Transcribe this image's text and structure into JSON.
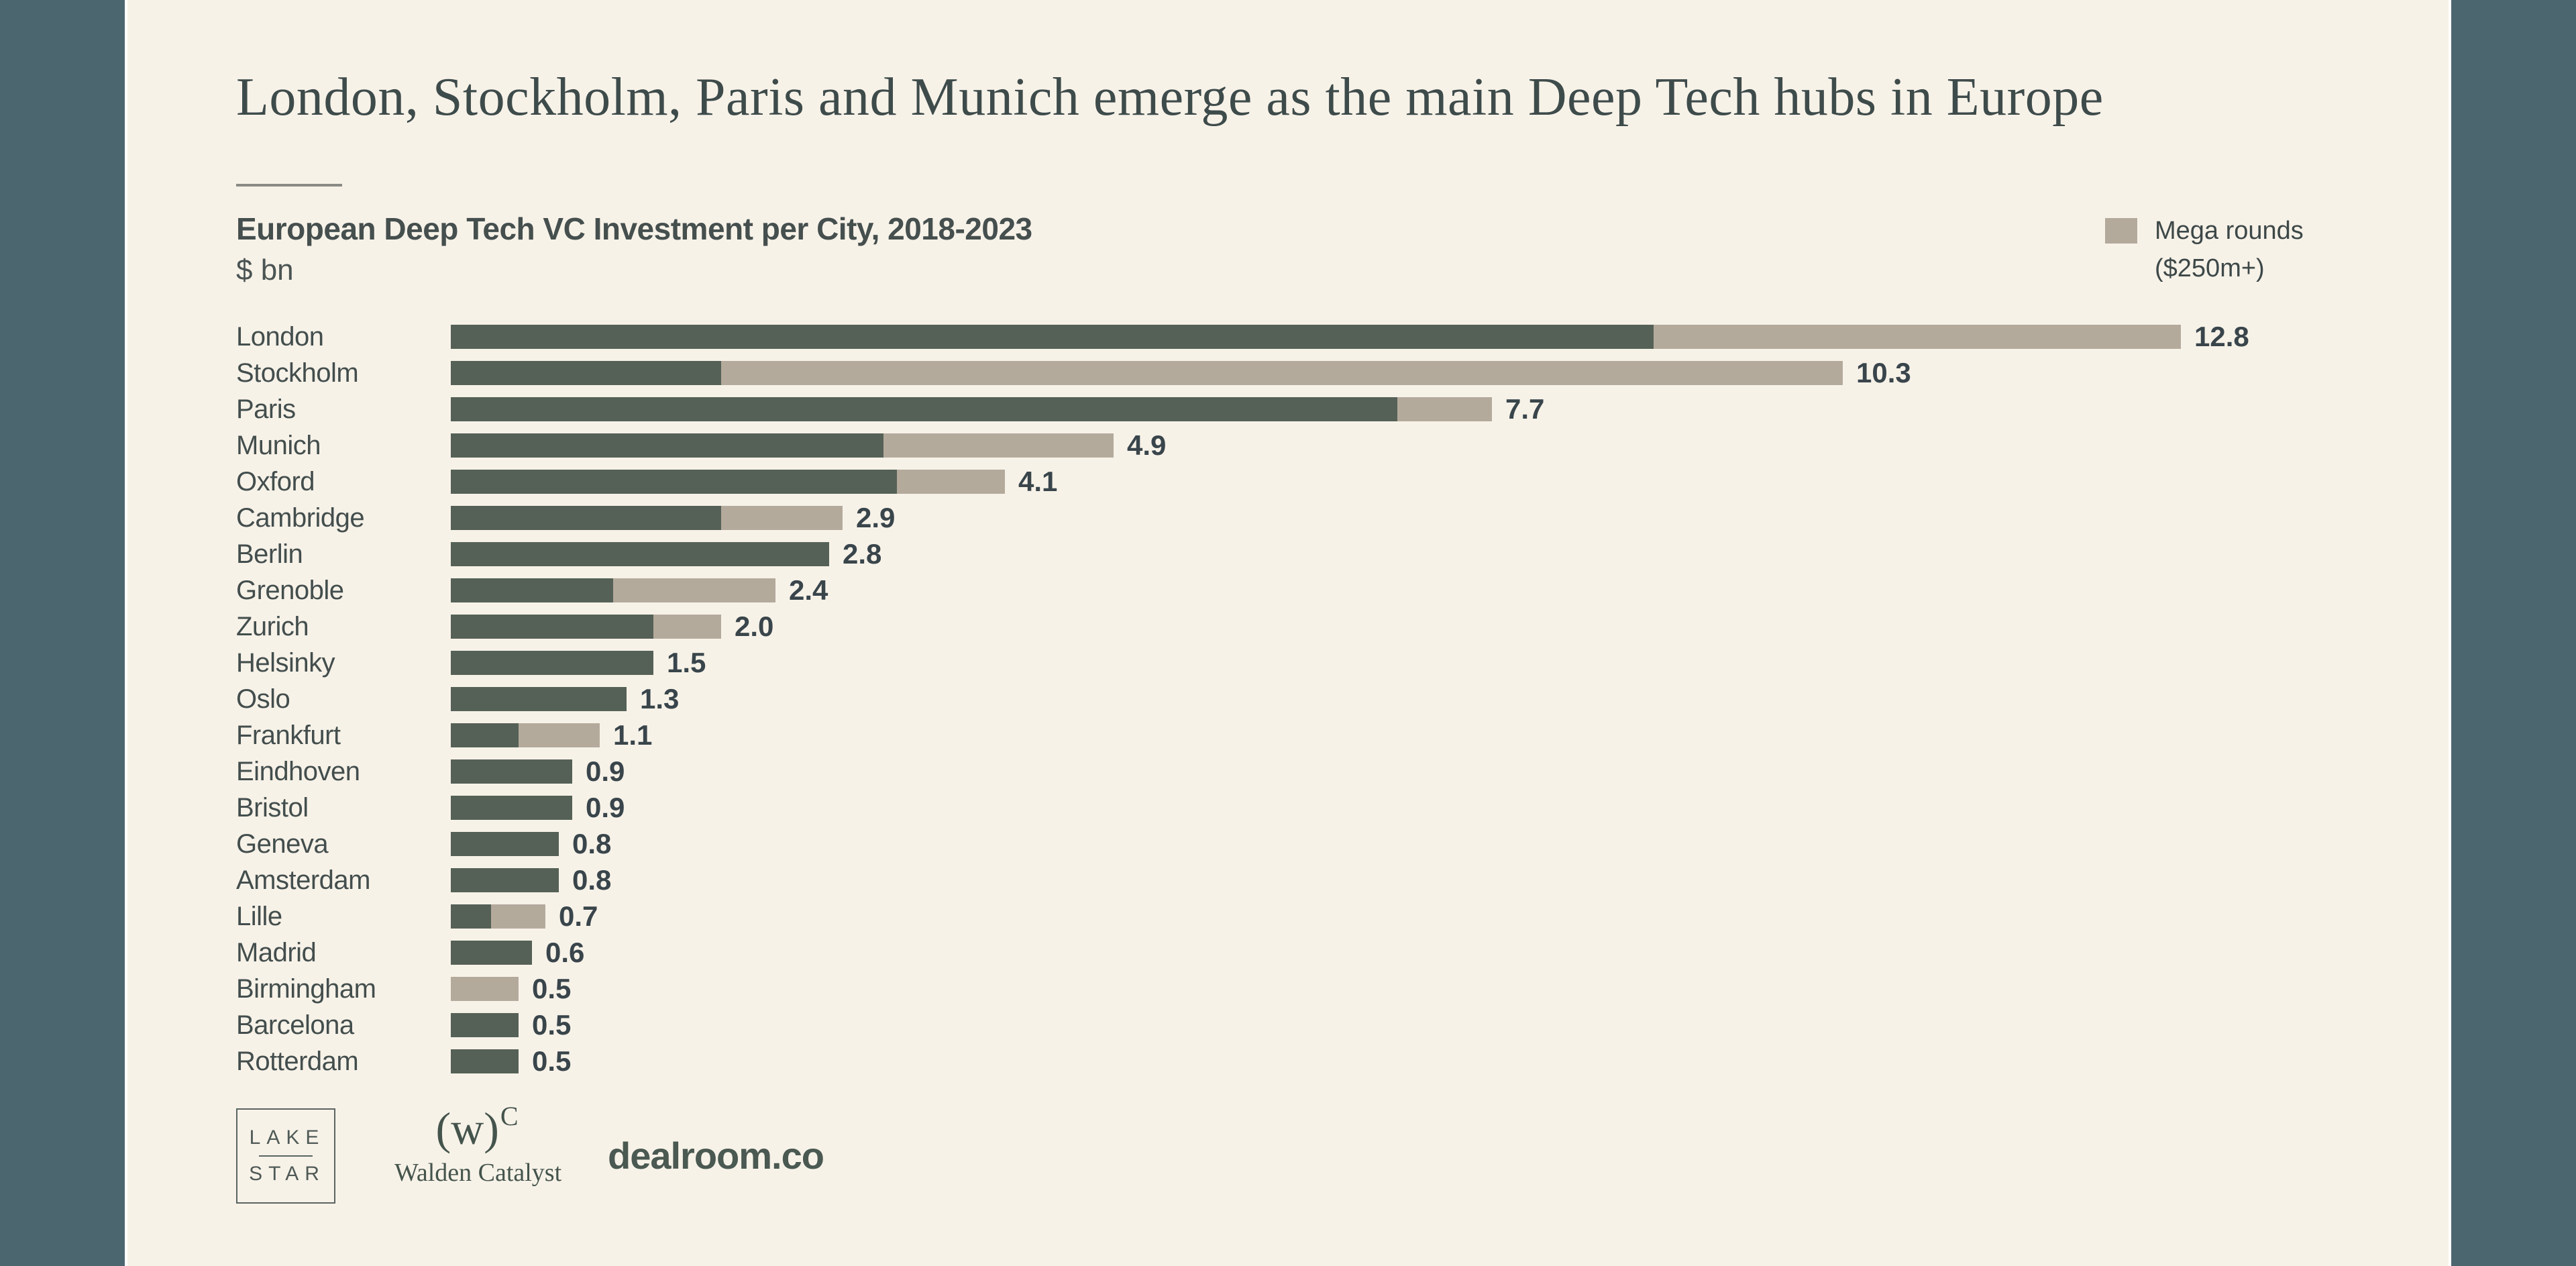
{
  "page": {
    "headline": "London, Stockholm, Paris and Munich emerge as the main Deep Tech hubs in Europe"
  },
  "chart_data": {
    "type": "bar",
    "orientation": "horizontal",
    "title": "European Deep Tech VC Investment per City, 2018-2023",
    "unit_label": "$ bn",
    "categories": [
      "London",
      "Stockholm",
      "Paris",
      "Munich",
      "Oxford",
      "Cambridge",
      "Berlin",
      "Grenoble",
      "Zurich",
      "Helsinky",
      "Oslo",
      "Frankfurt",
      "Eindhoven",
      "Bristol",
      "Geneva",
      "Amsterdam",
      "Lille",
      "Madrid",
      "Birmingham",
      "Barcelona",
      "Rotterdam"
    ],
    "series": [
      {
        "name": "",
        "color": "#556156",
        "values": [
          8.9,
          2.0,
          7.0,
          3.2,
          3.3,
          2.0,
          2.8,
          1.2,
          1.5,
          1.5,
          1.3,
          0.5,
          0.9,
          0.9,
          0.8,
          0.8,
          0.3,
          0.6,
          0.0,
          0.5,
          0.5
        ]
      },
      {
        "name": "Mega rounds ($250m+)",
        "color": "#b4aa9c",
        "values": [
          3.9,
          8.3,
          0.7,
          1.7,
          0.8,
          0.9,
          0.0,
          1.2,
          0.5,
          0.0,
          0.0,
          0.6,
          0.0,
          0.0,
          0.0,
          0.0,
          0.4,
          0.0,
          0.5,
          0.0,
          0.0
        ]
      }
    ],
    "totals": [
      "12.8",
      "10.3",
      "7.7",
      "4.9",
      "4.1",
      "2.9",
      "2.8",
      "2.4",
      "2.0",
      "1.5",
      "1.3",
      "1.1",
      "0.9",
      "0.9",
      "0.8",
      "0.8",
      "0.7",
      "0.6",
      "0.5",
      "0.5",
      "0.5"
    ],
    "xlim": [
      0,
      12.8
    ],
    "grid": "off",
    "legend_position": "top-right",
    "value_labels": "end-of-bar"
  },
  "legend": {
    "swatch_color": "#b4aa9c",
    "line1": "Mega rounds",
    "line2": "($250m+)"
  },
  "footer": {
    "lakestar": {
      "line1": "LAKE",
      "line2": "STAR"
    },
    "walden": {
      "mark": "(w)",
      "mark_sup": "C",
      "label": "Walden Catalyst"
    },
    "dealroom": {
      "label": "dealroom.co"
    }
  },
  "colors": {
    "background": "#f7f2e8",
    "side_band": "#4c6670",
    "bar_standard": "#556156",
    "bar_mega": "#b4aa9c",
    "text_dark": "#3e4b4b"
  }
}
